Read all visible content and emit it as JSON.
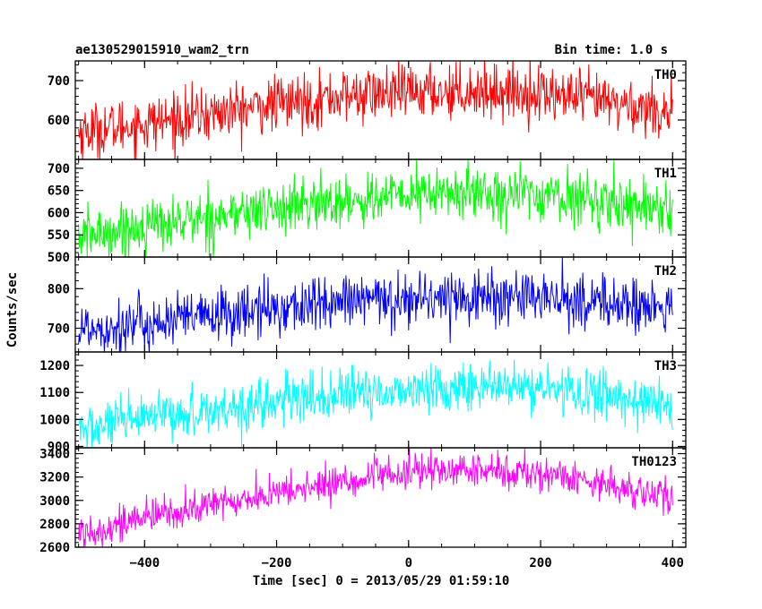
{
  "header": {
    "left_title": "ae130529015910_wam2_trn",
    "right_title": "Bin time: 1.0 s"
  },
  "chart_data": {
    "type": "line",
    "title": "ae130529015910_wam2_trn",
    "xlabel": "Time [sec] 0 = 2013/05/29 01:59:10",
    "ylabel": "Counts/sec",
    "xlim": [
      -505,
      420
    ],
    "x_ticks": [
      -400,
      -200,
      0,
      200,
      400
    ],
    "x_tick_labels": [
      "−400",
      "−200",
      "0",
      "200",
      "400"
    ],
    "x_data_range": [
      -500,
      400
    ],
    "bin_time_s": 1.0,
    "grid": false,
    "legend": "none",
    "panels": [
      {
        "name": "TH0",
        "color": "#ff0000",
        "ylim": [
          500,
          750
        ],
        "y_ticks": [
          600,
          700
        ],
        "y_tick_labels": [
          "600",
          "700"
        ],
        "trend": {
          "x": [
            -500,
            -400,
            -300,
            -200,
            -100,
            0,
            100,
            200,
            300,
            400
          ],
          "y": [
            570,
            590,
            615,
            640,
            660,
            670,
            675,
            668,
            645,
            620
          ]
        },
        "noise_amplitude": 35
      },
      {
        "name": "TH1",
        "color": "#00ff00",
        "ylim": [
          500,
          720
        ],
        "y_ticks": [
          500,
          550,
          600,
          650,
          700
        ],
        "y_tick_labels": [
          "500",
          "550",
          "600",
          "650",
          "700"
        ],
        "trend": {
          "x": [
            -500,
            -400,
            -300,
            -200,
            -100,
            0,
            100,
            200,
            300,
            400
          ],
          "y": [
            545,
            570,
            590,
            610,
            625,
            640,
            645,
            640,
            625,
            610
          ]
        },
        "noise_amplitude": 30
      },
      {
        "name": "TH2",
        "color": "#0000ff",
        "ylim": [
          640,
          880
        ],
        "y_ticks": [
          800,
          700
        ],
        "y_tick_labels": [
          "800",
          "700"
        ],
        "trend": {
          "x": [
            -500,
            -400,
            -300,
            -200,
            -100,
            0,
            100,
            200,
            300,
            400
          ],
          "y": [
            700,
            710,
            730,
            750,
            765,
            775,
            780,
            775,
            765,
            745
          ]
        },
        "noise_amplitude": 35
      },
      {
        "name": "TH3",
        "color": "#00ffff",
        "ylim": [
          895,
          1250
        ],
        "y_ticks": [
          900,
          1000,
          1100,
          1200
        ],
        "y_tick_labels": [
          "900",
          "1000",
          "1100",
          "1200"
        ],
        "trend": {
          "x": [
            -500,
            -400,
            -300,
            -200,
            -100,
            0,
            100,
            200,
            300,
            400
          ],
          "y": [
            960,
            1000,
            1035,
            1065,
            1090,
            1110,
            1120,
            1115,
            1090,
            1050
          ]
        },
        "noise_amplitude": 45
      },
      {
        "name": "TH0123",
        "color": "#ff00ff",
        "ylim": [
          2600,
          3450
        ],
        "y_ticks": [
          2600,
          2800,
          3000,
          3200,
          3400
        ],
        "y_tick_labels": [
          "2600",
          "2800",
          "3000",
          "3200",
          "3400"
        ],
        "trend": {
          "x": [
            -500,
            -400,
            -300,
            -200,
            -100,
            0,
            100,
            200,
            300,
            400
          ],
          "y": [
            2720,
            2850,
            2960,
            3060,
            3160,
            3240,
            3260,
            3230,
            3150,
            3000
          ]
        },
        "noise_amplitude": 75
      }
    ]
  }
}
